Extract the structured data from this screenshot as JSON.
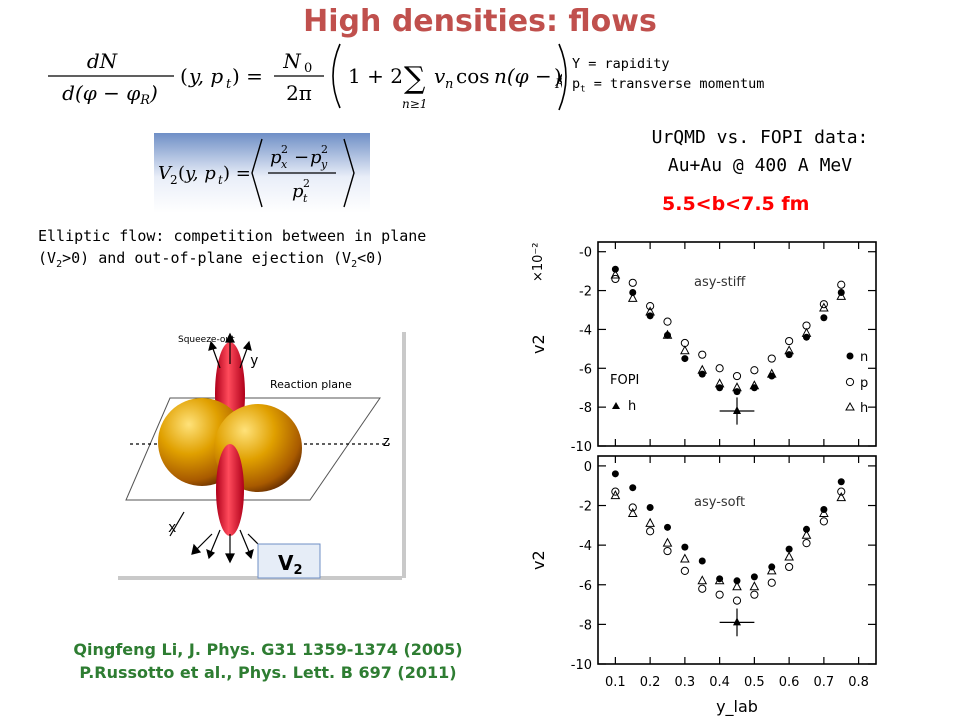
{
  "title": "High densities: flows",
  "definitions": {
    "y_line": "Y = rapidity",
    "pt_prefix": "p",
    "pt_sub": "t",
    "pt_suffix": " = transverse momentum"
  },
  "subtitle": {
    "line1": "UrQMD vs. FOPI data:",
    "line2": "Au+Au @ 400 A MeV"
  },
  "impact_parameter": "5.5<b<7.5 fm",
  "elliptic": {
    "l1": "Elliptic flow: competition between in plane",
    "l2_a": "(V",
    "l2_sub1": "2",
    "l2_b": ">0) and out-of-plane ejection (V",
    "l2_sub2": "2",
    "l2_c": "<0)"
  },
  "diagram": {
    "squeeze_out": "Squeeze-out",
    "reaction_plane": "Reaction plane",
    "axis_y": "y",
    "axis_z": "z",
    "axis_x": "x",
    "v2_main": "V",
    "v2_sub": "2"
  },
  "references": {
    "line1": "Qingfeng Li, J. Phys. G31 1359-1374 (2005)",
    "line2": "P.Russotto et al., Phys. Lett. B 697 (2011)"
  },
  "chart_data": [
    {
      "type": "scatter",
      "panel_label": "asy-stiff",
      "xlabel": "",
      "ylabel": "v2",
      "y_scale_label": "×10⁻²",
      "xlim": [
        0.05,
        0.85
      ],
      "ylim": [
        -10,
        0.5
      ],
      "yticks": [
        0,
        -2,
        -4,
        -6,
        -8,
        -10
      ],
      "ytick_labels": [
        "-0",
        "-2",
        "-4",
        "-6",
        "-8",
        "-10"
      ],
      "legend_title": "FOPI",
      "legend_left": "h",
      "legend_right": [
        "n",
        "p",
        "h"
      ],
      "series": [
        {
          "name": "n",
          "x": [
            0.1,
            0.15,
            0.2,
            0.25,
            0.3,
            0.35,
            0.4,
            0.45,
            0.5,
            0.55,
            0.6,
            0.65,
            0.7,
            0.75
          ],
          "y": [
            -0.9,
            -2.1,
            -3.3,
            -4.3,
            -5.5,
            -6.3,
            -7.0,
            -7.2,
            -7.0,
            -6.4,
            -5.3,
            -4.4,
            -3.4,
            -2.1
          ]
        },
        {
          "name": "p",
          "x": [
            0.1,
            0.15,
            0.2,
            0.25,
            0.3,
            0.35,
            0.4,
            0.45,
            0.5,
            0.55,
            0.6,
            0.65,
            0.7,
            0.75
          ],
          "y": [
            -1.4,
            -1.6,
            -2.8,
            -3.6,
            -4.7,
            -5.3,
            -6.0,
            -6.4,
            -6.1,
            -5.5,
            -4.6,
            -3.8,
            -2.7,
            -1.7
          ]
        },
        {
          "name": "h",
          "x": [
            0.1,
            0.15,
            0.2,
            0.25,
            0.3,
            0.35,
            0.4,
            0.45,
            0.5,
            0.55,
            0.6,
            0.65,
            0.7,
            0.75
          ],
          "y": [
            -1.2,
            -2.4,
            -3.1,
            -4.3,
            -5.1,
            -6.1,
            -6.8,
            -7.0,
            -6.9,
            -6.3,
            -5.1,
            -4.2,
            -2.9,
            -2.3
          ]
        },
        {
          "name": "FOPI h",
          "x": [
            0.45
          ],
          "y": [
            -8.2
          ],
          "xerr": 0.05,
          "yerr": 0.7
        }
      ]
    },
    {
      "type": "scatter",
      "panel_label": "asy-soft",
      "xlabel": "y_lab",
      "ylabel": "v2",
      "xlim": [
        0.05,
        0.85
      ],
      "ylim": [
        -10,
        0.5
      ],
      "xticks": [
        0.1,
        0.2,
        0.3,
        0.4,
        0.5,
        0.6,
        0.7,
        0.8
      ],
      "xtick_labels": [
        "0.1",
        "0.2",
        "0.3",
        "0.4",
        "0.5",
        "0.6",
        "0.7",
        "0.8"
      ],
      "yticks": [
        0,
        -2,
        -4,
        -6,
        -8,
        -10
      ],
      "ytick_labels": [
        "0",
        "-2",
        "-4",
        "-6",
        "-8",
        "-10"
      ],
      "series": [
        {
          "name": "n",
          "x": [
            0.1,
            0.15,
            0.2,
            0.25,
            0.3,
            0.35,
            0.4,
            0.45,
            0.5,
            0.55,
            0.6,
            0.65,
            0.7,
            0.75
          ],
          "y": [
            -0.4,
            -1.1,
            -2.1,
            -3.1,
            -4.1,
            -4.8,
            -5.7,
            -5.8,
            -5.6,
            -5.1,
            -4.2,
            -3.2,
            -2.2,
            -0.8
          ]
        },
        {
          "name": "p",
          "x": [
            0.1,
            0.15,
            0.2,
            0.25,
            0.3,
            0.35,
            0.4,
            0.45,
            0.5,
            0.55,
            0.6,
            0.65,
            0.7,
            0.75
          ],
          "y": [
            -1.3,
            -2.1,
            -3.3,
            -4.3,
            -5.3,
            -6.2,
            -6.5,
            -6.8,
            -6.5,
            -5.9,
            -5.1,
            -3.9,
            -2.8,
            -1.3
          ]
        },
        {
          "name": "h",
          "x": [
            0.1,
            0.15,
            0.2,
            0.25,
            0.3,
            0.35,
            0.4,
            0.45,
            0.5,
            0.55,
            0.6,
            0.65,
            0.7,
            0.75
          ],
          "y": [
            -1.5,
            -2.4,
            -2.9,
            -3.9,
            -4.7,
            -5.8,
            -5.8,
            -6.1,
            -6.1,
            -5.3,
            -4.6,
            -3.5,
            -2.4,
            -1.6
          ]
        },
        {
          "name": "FOPI h",
          "x": [
            0.45
          ],
          "y": [
            -7.9
          ],
          "xerr": 0.05,
          "yerr": 0.7
        }
      ]
    }
  ]
}
